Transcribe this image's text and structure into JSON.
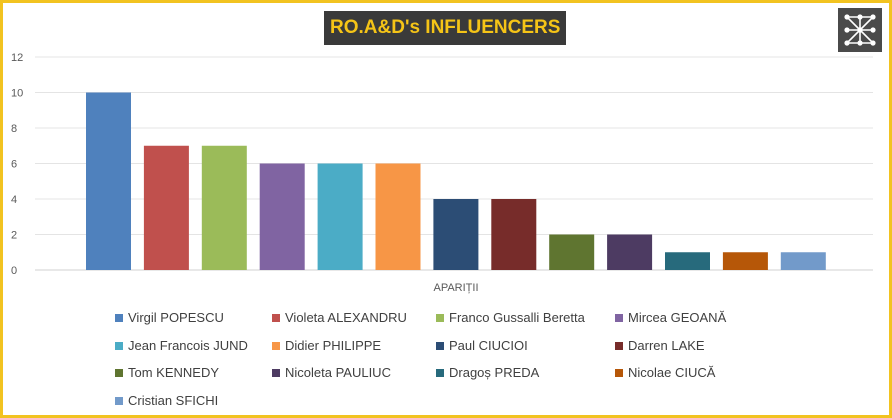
{
  "chart_data": {
    "type": "bar",
    "title": "RO.A&D's INFLUENCERS",
    "xlabel": "APARIȚII",
    "ylabel": "",
    "ylim": [
      0,
      12
    ],
    "yticks": [
      0,
      2,
      4,
      6,
      8,
      10,
      12
    ],
    "grid": true,
    "legend_position": "bottom",
    "series": [
      {
        "name": "Virgil POPESCU",
        "value": 10,
        "color": "#4f81bd"
      },
      {
        "name": "Violeta ALEXANDRU",
        "value": 7,
        "color": "#c0504d"
      },
      {
        "name": "Franco Gussalli Beretta",
        "value": 7,
        "color": "#9bbb59"
      },
      {
        "name": "Mircea GEOANĂ",
        "value": 6,
        "color": "#8064a2"
      },
      {
        "name": "Jean Francois JUND",
        "value": 6,
        "color": "#4bacc6"
      },
      {
        "name": "Didier PHILIPPE",
        "value": 6,
        "color": "#f79646"
      },
      {
        "name": "Paul CIUCIOI",
        "value": 4,
        "color": "#2c4d75"
      },
      {
        "name": "Darren LAKE",
        "value": 4,
        "color": "#772c2a"
      },
      {
        "name": "Tom KENNEDY",
        "value": 2,
        "color": "#5f7530"
      },
      {
        "name": "Nicoleta PAULIUC",
        "value": 2,
        "color": "#4d3b62"
      },
      {
        "name": "Dragoș PREDA",
        "value": 1,
        "color": "#276a7c"
      },
      {
        "name": "Nicolae CIUCĂ",
        "value": 1,
        "color": "#b65708"
      },
      {
        "name": "Cristian SFICHI",
        "value": 1,
        "color": "#729aca"
      }
    ]
  },
  "logo": {
    "icon": "network-grid-icon",
    "background": "#4a4a4a"
  }
}
